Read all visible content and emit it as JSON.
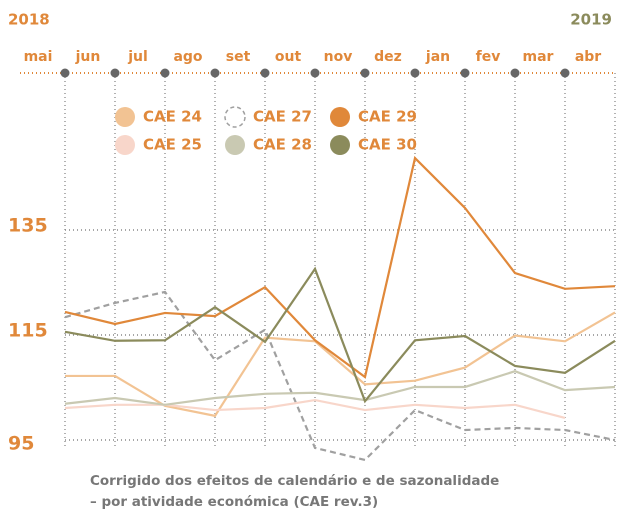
{
  "chart_data": {
    "type": "line",
    "years": [
      "2018",
      "2019"
    ],
    "categories": [
      "mai",
      "jun",
      "jul",
      "ago",
      "set",
      "out",
      "nov",
      "dez",
      "jan",
      "fev",
      "mar",
      "abr"
    ],
    "series": [
      {
        "name": "CAE 24",
        "color": "#f2c393",
        "dash": false,
        "values": [
          107.2,
          107.2,
          101.5,
          99.6,
          114.5,
          113.8,
          105.6,
          106.3,
          108.8,
          114.9,
          113.8,
          119.3
        ]
      },
      {
        "name": "CAE 27",
        "color": "#a0a0a0",
        "dash": true,
        "values": [
          118.4,
          121.1,
          123.2,
          110.2,
          116.0,
          93.5,
          91.2,
          100.7,
          96.9,
          97.3,
          96.9,
          95.0
        ]
      },
      {
        "name": "CAE 29",
        "color": "#e0883a",
        "dash": false,
        "values": [
          119.4,
          117.1,
          119.2,
          118.6,
          124.1,
          114.0,
          107.0,
          148.7,
          139.2,
          126.8,
          123.8,
          124.3
        ]
      },
      {
        "name": "CAE 25",
        "color": "#f8d6ca",
        "dash": false,
        "values": [
          101.1,
          101.7,
          101.7,
          100.7,
          101.1,
          102.6,
          100.7,
          101.7,
          101.1,
          101.7,
          99.2,
          null
        ]
      },
      {
        "name": "CAE 28",
        "color": "#c9c9b2",
        "dash": false,
        "values": [
          101.9,
          103.0,
          101.7,
          103.0,
          103.8,
          104.0,
          102.6,
          105.1,
          105.1,
          108.1,
          104.5,
          105.1
        ]
      },
      {
        "name": "CAE 30",
        "color": "#8b8b5c",
        "dash": false,
        "values": [
          115.6,
          113.9,
          114.0,
          120.3,
          113.7,
          127.6,
          102.4,
          114.0,
          114.8,
          109.1,
          107.8,
          113.9
        ]
      }
    ],
    "ylim": [
      95,
      135
    ],
    "yticks": [
      95,
      115,
      135
    ],
    "grid": true,
    "notes": [
      "Corrigido dos efeitos de calendário e de sazonalidade",
      "– por atividade económica (CAE rev.3)"
    ]
  }
}
